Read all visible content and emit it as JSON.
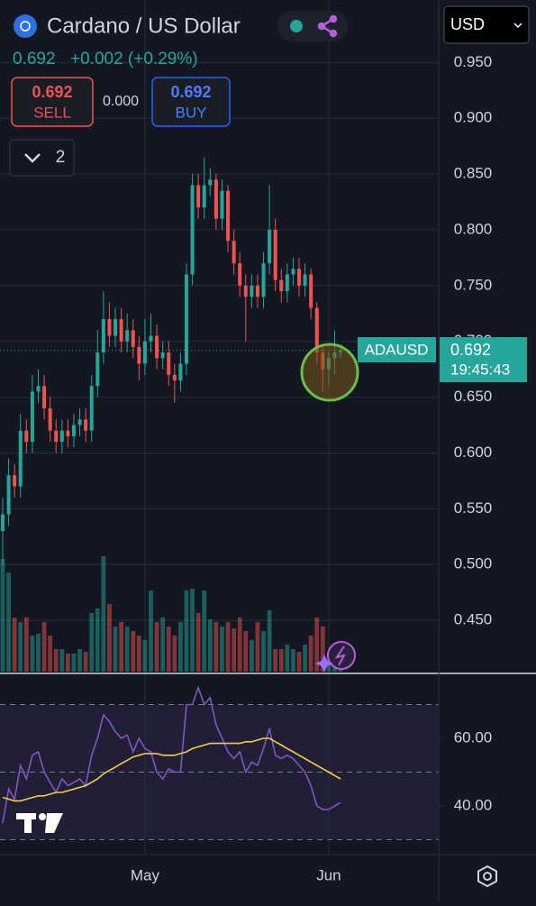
{
  "header": {
    "title": "Cardano / US Dollar",
    "price": "0.692",
    "change": "+0.002 (+0.29%)"
  },
  "trade": {
    "sell_price": "0.692",
    "sell_label": "SELL",
    "spread": "0.000",
    "buy_price": "0.692",
    "buy_label": "BUY"
  },
  "indicators_count": 2,
  "currency": "USD",
  "chart_data": [
    {
      "type": "candlestick",
      "symbol": "ADAUSD",
      "last_price": 0.692,
      "countdown": "19:45:43",
      "up_color": "#26a69a",
      "down_color": "#ef5350",
      "grid": true,
      "ylim": [
        0.404,
        1.006
      ],
      "yticks": [
        {
          "value": 0.45,
          "label": "0.450"
        },
        {
          "value": 0.5,
          "label": "0.500"
        },
        {
          "value": 0.55,
          "label": "0.550"
        },
        {
          "value": 0.6,
          "label": "0.600"
        },
        {
          "value": 0.65,
          "label": "0.650"
        },
        {
          "value": 0.7,
          "label": "0.700"
        },
        {
          "value": 0.75,
          "label": "0.750"
        },
        {
          "value": 0.8,
          "label": "0.800"
        },
        {
          "value": 0.85,
          "label": "0.850"
        },
        {
          "value": 0.9,
          "label": "0.900"
        },
        {
          "value": 0.95,
          "label": "0.950"
        }
      ],
      "open": [
        0.53,
        0.545,
        0.58,
        0.57,
        0.62,
        0.61,
        0.655,
        0.66,
        0.64,
        0.62,
        0.61,
        0.62,
        0.615,
        0.625,
        0.63,
        0.62,
        0.66,
        0.69,
        0.72,
        0.705,
        0.72,
        0.7,
        0.71,
        0.695,
        0.68,
        0.7,
        0.705,
        0.685,
        0.69,
        0.67,
        0.665,
        0.68,
        0.76,
        0.84,
        0.82,
        0.84,
        0.845,
        0.81,
        0.835,
        0.79,
        0.77,
        0.75,
        0.74,
        0.75,
        0.74,
        0.77,
        0.8,
        0.755,
        0.745,
        0.76,
        0.765,
        0.75,
        0.76,
        0.73,
        0.69,
        0.675,
        0.685,
        0.69
      ],
      "high": [
        0.56,
        0.595,
        0.59,
        0.635,
        0.63,
        0.67,
        0.675,
        0.67,
        0.65,
        0.63,
        0.63,
        0.63,
        0.635,
        0.64,
        0.64,
        0.67,
        0.71,
        0.745,
        0.735,
        0.73,
        0.73,
        0.725,
        0.72,
        0.705,
        0.72,
        0.725,
        0.715,
        0.7,
        0.7,
        0.68,
        0.69,
        0.77,
        0.85,
        0.85,
        0.865,
        0.855,
        0.85,
        0.845,
        0.84,
        0.8,
        0.78,
        0.76,
        0.76,
        0.76,
        0.78,
        0.84,
        0.81,
        0.765,
        0.77,
        0.775,
        0.775,
        0.77,
        0.765,
        0.735,
        0.695,
        0.69,
        0.71,
        0.697
      ],
      "low": [
        0.5,
        0.535,
        0.56,
        0.56,
        0.6,
        0.6,
        0.645,
        0.63,
        0.61,
        0.6,
        0.6,
        0.605,
        0.605,
        0.615,
        0.61,
        0.61,
        0.65,
        0.68,
        0.695,
        0.695,
        0.69,
        0.69,
        0.685,
        0.665,
        0.67,
        0.69,
        0.675,
        0.675,
        0.66,
        0.645,
        0.655,
        0.67,
        0.75,
        0.81,
        0.81,
        0.83,
        0.8,
        0.8,
        0.78,
        0.76,
        0.74,
        0.7,
        0.73,
        0.73,
        0.73,
        0.76,
        0.745,
        0.735,
        0.735,
        0.75,
        0.74,
        0.74,
        0.72,
        0.68,
        0.655,
        0.66,
        0.67,
        0.685
      ],
      "close": [
        0.545,
        0.58,
        0.57,
        0.62,
        0.61,
        0.655,
        0.66,
        0.64,
        0.62,
        0.61,
        0.62,
        0.615,
        0.625,
        0.63,
        0.62,
        0.66,
        0.69,
        0.72,
        0.705,
        0.72,
        0.7,
        0.71,
        0.695,
        0.68,
        0.7,
        0.705,
        0.685,
        0.69,
        0.67,
        0.665,
        0.68,
        0.76,
        0.84,
        0.82,
        0.84,
        0.845,
        0.81,
        0.835,
        0.79,
        0.77,
        0.75,
        0.74,
        0.75,
        0.74,
        0.77,
        0.8,
        0.755,
        0.745,
        0.76,
        0.765,
        0.75,
        0.76,
        0.73,
        0.69,
        0.675,
        0.685,
        0.69,
        0.692
      ],
      "volume": {
        "ylim": [
          0,
          200
        ],
        "values": [
          125,
          110,
          60,
          55,
          60,
          40,
          42,
          55,
          40,
          25,
          25,
          20,
          20,
          25,
          22,
          65,
          70,
          128,
          75,
          50,
          55,
          50,
          45,
          40,
          35,
          90,
          55,
          60,
          50,
          40,
          55,
          90,
          92,
          65,
          90,
          58,
          55,
          50,
          55,
          48,
          60,
          45,
          35,
          55,
          45,
          68,
          25,
          25,
          30,
          25,
          22,
          30,
          40,
          60,
          50,
          20,
          10,
          5
        ]
      }
    },
    {
      "type": "line",
      "ylim": [
        25.6,
        78.4
      ],
      "yticks": [
        {
          "value": 40,
          "label": "40.00"
        },
        {
          "value": 60,
          "label": "60.00"
        }
      ],
      "levels": [
        30,
        50,
        70
      ],
      "categories": [
        null,
        null,
        null,
        null,
        null,
        null,
        null,
        null,
        null,
        null,
        null,
        null,
        null,
        null,
        null,
        null,
        null,
        null,
        null,
        null,
        null,
        null,
        null,
        null,
        "May",
        null,
        null,
        null,
        null,
        null,
        null,
        null,
        null,
        null,
        null,
        null,
        null,
        null,
        null,
        null,
        null,
        null,
        null,
        null,
        null,
        null,
        null,
        null,
        null,
        null,
        null,
        null,
        null,
        null,
        null,
        "Jun",
        null,
        null
      ],
      "series": [
        {
          "color": "#7e57c2",
          "values": [
            35,
            45,
            42,
            52,
            48,
            55,
            56,
            50,
            47,
            44,
            48,
            46,
            47,
            48,
            46,
            55,
            60,
            67,
            65,
            62,
            60,
            61,
            56,
            60,
            57,
            56,
            50,
            48,
            51,
            50,
            50,
            70,
            70,
            75,
            70,
            72,
            64,
            60,
            56,
            54,
            56,
            50,
            53,
            52,
            57,
            63,
            55,
            54,
            55,
            54,
            52,
            50,
            46,
            40,
            39,
            39,
            40,
            41
          ]
        },
        {
          "color": "#f7c948",
          "values": [
            42.5,
            42,
            41.5,
            41.5,
            42,
            42.5,
            43,
            43,
            43.5,
            44,
            44,
            44.5,
            45,
            45.5,
            46,
            47,
            48,
            49.5,
            50.5,
            51.5,
            52.5,
            53.5,
            54.5,
            55,
            55.5,
            55.5,
            55.5,
            55,
            55,
            55,
            55.5,
            56,
            57,
            57.5,
            58,
            58.5,
            58.5,
            58.5,
            58.5,
            58.5,
            58.5,
            59,
            59,
            59.5,
            60,
            60,
            59,
            58,
            57,
            56,
            55,
            54,
            53,
            52,
            51,
            50,
            49,
            48
          ]
        }
      ]
    }
  ]
}
